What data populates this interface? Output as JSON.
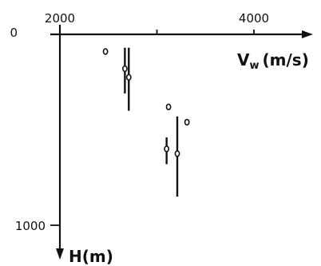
{
  "chart_data": {
    "type": "scatter",
    "title": "",
    "xlabel": "V_w (m/s)",
    "xlabel_main": "V",
    "xlabel_sub": "w",
    "xlabel_unit": "(m/s)",
    "ylabel": "H(m)",
    "x_axis_position": "top",
    "y_direction": "down",
    "xlim": [
      1900,
      4600
    ],
    "ylim": [
      0,
      1100
    ],
    "x_ticks": [
      {
        "value": 2000,
        "label": "2000"
      },
      {
        "value": 3000,
        "label": ""
      },
      {
        "value": 4000,
        "label": "4000"
      }
    ],
    "y_ticks": [
      {
        "value": 0,
        "label": "0"
      },
      {
        "value": 1000,
        "label": "1000"
      }
    ],
    "grid": false,
    "legend": null,
    "series": [
      {
        "points": [
          {
            "x": 2470,
            "y": 90
          },
          {
            "x": 2670,
            "y": 180,
            "y_range": [
              70,
              310
            ]
          },
          {
            "x": 2710,
            "y": 225,
            "y_range": [
              70,
              400
            ]
          },
          {
            "x": 3120,
            "y": 380
          },
          {
            "x": 3310,
            "y": 460
          },
          {
            "x": 3100,
            "y": 600,
            "y_range": [
              540,
              680
            ]
          },
          {
            "x": 3210,
            "y": 625,
            "y_range": [
              430,
              850
            ]
          }
        ]
      }
    ]
  }
}
